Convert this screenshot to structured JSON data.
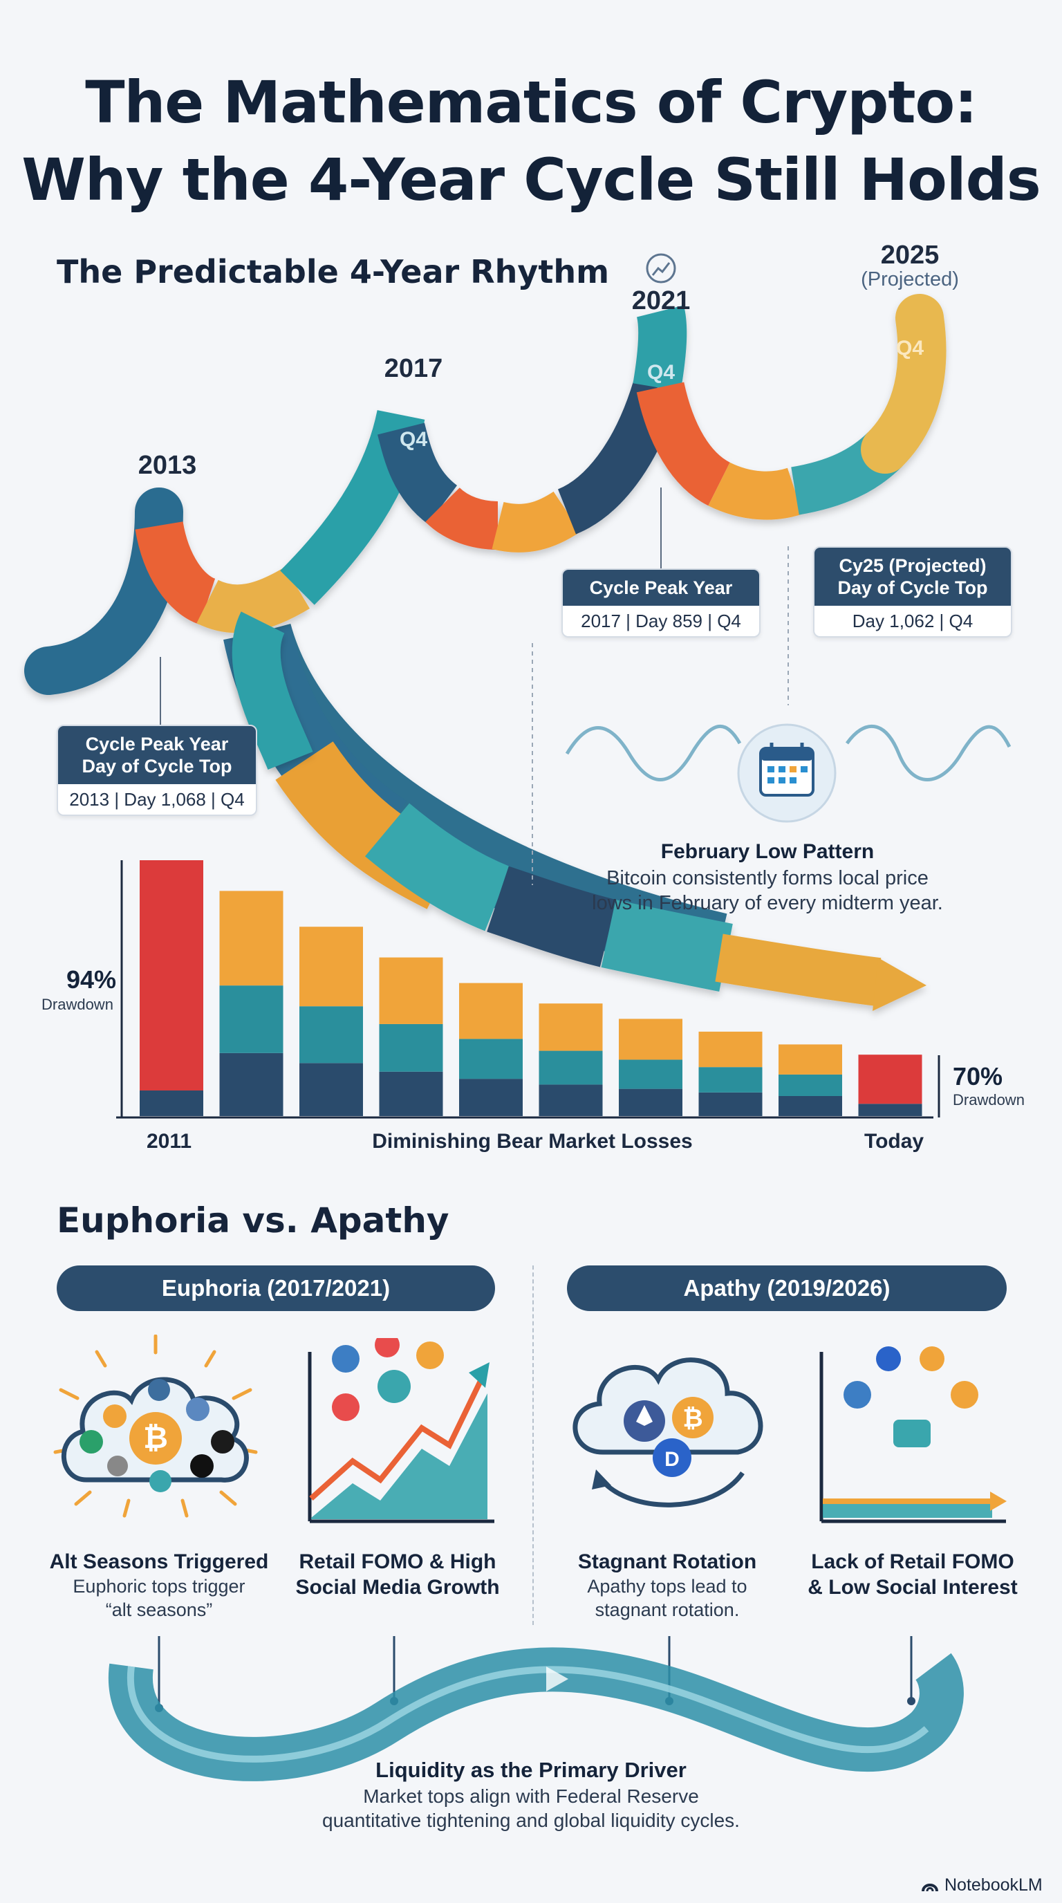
{
  "title": {
    "line1": "The Mathematics of Crypto:",
    "line2": "Why the 4-Year Cycle Still Holds"
  },
  "rhythm": {
    "heading": "The Predictable 4-Year Rhythm",
    "years": [
      "2013",
      "2017",
      "2021",
      "2025"
    ],
    "projected_label": "(Projected)",
    "quarter_label": "Q4",
    "cards": [
      {
        "head_line1": "Cycle Peak Year",
        "head_line2": "Day of Cycle Top",
        "foot": "2013 | Day 1,068 | Q4"
      },
      {
        "head_line1": "Cycle Peak Year",
        "head_line2": "",
        "foot": "2017 | Day 859 | Q4"
      },
      {
        "head_line1": "Cy25 (Projected)",
        "head_line2": "Day of Cycle Top",
        "foot": "Day 1,062 | Q4"
      }
    ]
  },
  "february": {
    "icon": "calendar-icon",
    "title": "February Low Pattern",
    "desc_line1": "Bitcoin consistently forms local price",
    "desc_line2": "lows in February of every midterm year."
  },
  "drawdown": {
    "start_pct": "94%",
    "start_caption": "Drawdown",
    "end_pct": "70%",
    "end_caption": "Drawdown",
    "x_start": "2011",
    "x_mid": "Diminishing Bear Market Losses",
    "x_end": "Today"
  },
  "chart_data": {
    "type": "bar",
    "title": "",
    "xlabel": "Diminishing Bear Market Losses",
    "ylabel": "",
    "categories": [
      "2011",
      "",
      "",
      "",
      "",
      "",
      "",
      "",
      "",
      "Today"
    ],
    "annotations": [
      {
        "category_index": 0,
        "label": "94% Drawdown"
      },
      {
        "category_index": 9,
        "label": "70% Drawdown"
      }
    ],
    "bar_heights_relative": [
      1.0,
      0.88,
      0.74,
      0.62,
      0.52,
      0.44,
      0.38,
      0.33,
      0.28,
      0.24
    ],
    "colors": {
      "red": "#dc3b3b",
      "orange": "#f0a43a",
      "teal": "#2a8f9c",
      "navy": "#2a4b6c"
    }
  },
  "euphoria_apathy": {
    "heading": "Euphoria vs. Apathy",
    "euphoria_pill": "Euphoria (2017/2021)",
    "apathy_pill": "Apathy (2019/2026)",
    "items": [
      {
        "icon": "altcoin-cloud-icon",
        "title_line1": "Alt Seasons Triggered",
        "title_line2": "",
        "desc_line1": "Euphoric tops trigger",
        "desc_line2": "“alt seasons”"
      },
      {
        "icon": "social-growth-chart-icon",
        "title_line1": "Retail FOMO & High",
        "title_line2": "Social Media Growth",
        "desc_line1": "",
        "desc_line2": ""
      },
      {
        "icon": "rotation-cloud-icon",
        "title_line1": "Stagnant Rotation",
        "title_line2": "",
        "desc_line1": "Apathy tops lead to",
        "desc_line2": "stagnant rotation."
      },
      {
        "icon": "flat-social-chart-icon",
        "title_line1": "Lack of Retail FOMO",
        "title_line2": "& Low Social Interest",
        "desc_line1": "",
        "desc_line2": ""
      }
    ]
  },
  "liquidity": {
    "title": "Liquidity as the Primary Driver",
    "desc_line1": "Market tops align with Federal Reserve",
    "desc_line2": "quantitative tightening and global liquidity cycles."
  },
  "footer": {
    "brand": "NotebookLM",
    "icon": "notebooklm-logo-icon"
  },
  "colors": {
    "navy": "#2a4b6c",
    "teal": "#3aa6ad",
    "orange": "#f0a43a",
    "red_orange": "#ea6236",
    "gold": "#e8b850"
  }
}
